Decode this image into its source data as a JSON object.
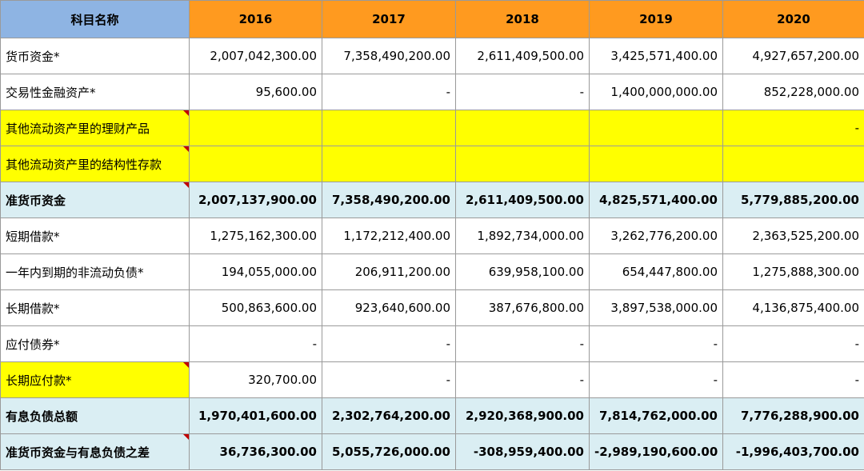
{
  "header": {
    "name_col": "科目名称",
    "years": [
      "2016",
      "2017",
      "2018",
      "2019",
      "2020"
    ]
  },
  "rows": [
    {
      "label": "货币资金*",
      "values": [
        "2,007,042,300.00",
        "7,358,490,200.00",
        "2,611,409,500.00",
        "3,425,571,400.00",
        "4,927,657,200.00"
      ]
    },
    {
      "label": "交易性金融资产*",
      "values": [
        "95,600.00",
        "-",
        "-",
        "1,400,000,000.00",
        "852,228,000.00"
      ]
    },
    {
      "label": "其他流动资产里的理财产品",
      "values": [
        "",
        "",
        "",
        "",
        "-"
      ]
    },
    {
      "label": "其他流动资产里的结构性存款",
      "values": [
        "",
        "",
        "",
        "",
        ""
      ]
    },
    {
      "label": "准货币资金",
      "values": [
        "2,007,137,900.00",
        "7,358,490,200.00",
        "2,611,409,500.00",
        "4,825,571,400.00",
        "5,779,885,200.00"
      ]
    },
    {
      "label": "短期借款*",
      "values": [
        "1,275,162,300.00",
        "1,172,212,400.00",
        "1,892,734,000.00",
        "3,262,776,200.00",
        "2,363,525,200.00"
      ]
    },
    {
      "label": "一年内到期的非流动负债*",
      "values": [
        "194,055,000.00",
        "206,911,200.00",
        "639,958,100.00",
        "654,447,800.00",
        "1,275,888,300.00"
      ]
    },
    {
      "label": "长期借款*",
      "values": [
        "500,863,600.00",
        "923,640,600.00",
        "387,676,800.00",
        "3,897,538,000.00",
        "4,136,875,400.00"
      ]
    },
    {
      "label": "应付债券*",
      "values": [
        "-",
        "-",
        "-",
        "-",
        "-"
      ]
    },
    {
      "label": "长期应付款*",
      "values": [
        "320,700.00",
        "-",
        "-",
        "-",
        "-"
      ]
    },
    {
      "label": "有息负债总额",
      "values": [
        "1,970,401,600.00",
        "2,302,764,200.00",
        "2,920,368,900.00",
        "7,814,762,000.00",
        "7,776,288,900.00"
      ]
    },
    {
      "label": "准货币资金与有息负债之差",
      "values": [
        "36,736,300.00",
        "5,055,726,000.00",
        "-308,959,400.00",
        "-2,989,190,600.00",
        "-1,996,403,700.00"
      ]
    }
  ],
  "colors": {
    "name_header_bg": "#8eb4e3",
    "year_header_bg": "#ff9a1f",
    "highlight_yellow": "#ffff00",
    "total_row_bg": "#daeef3",
    "comment_marker": "#c00000"
  }
}
